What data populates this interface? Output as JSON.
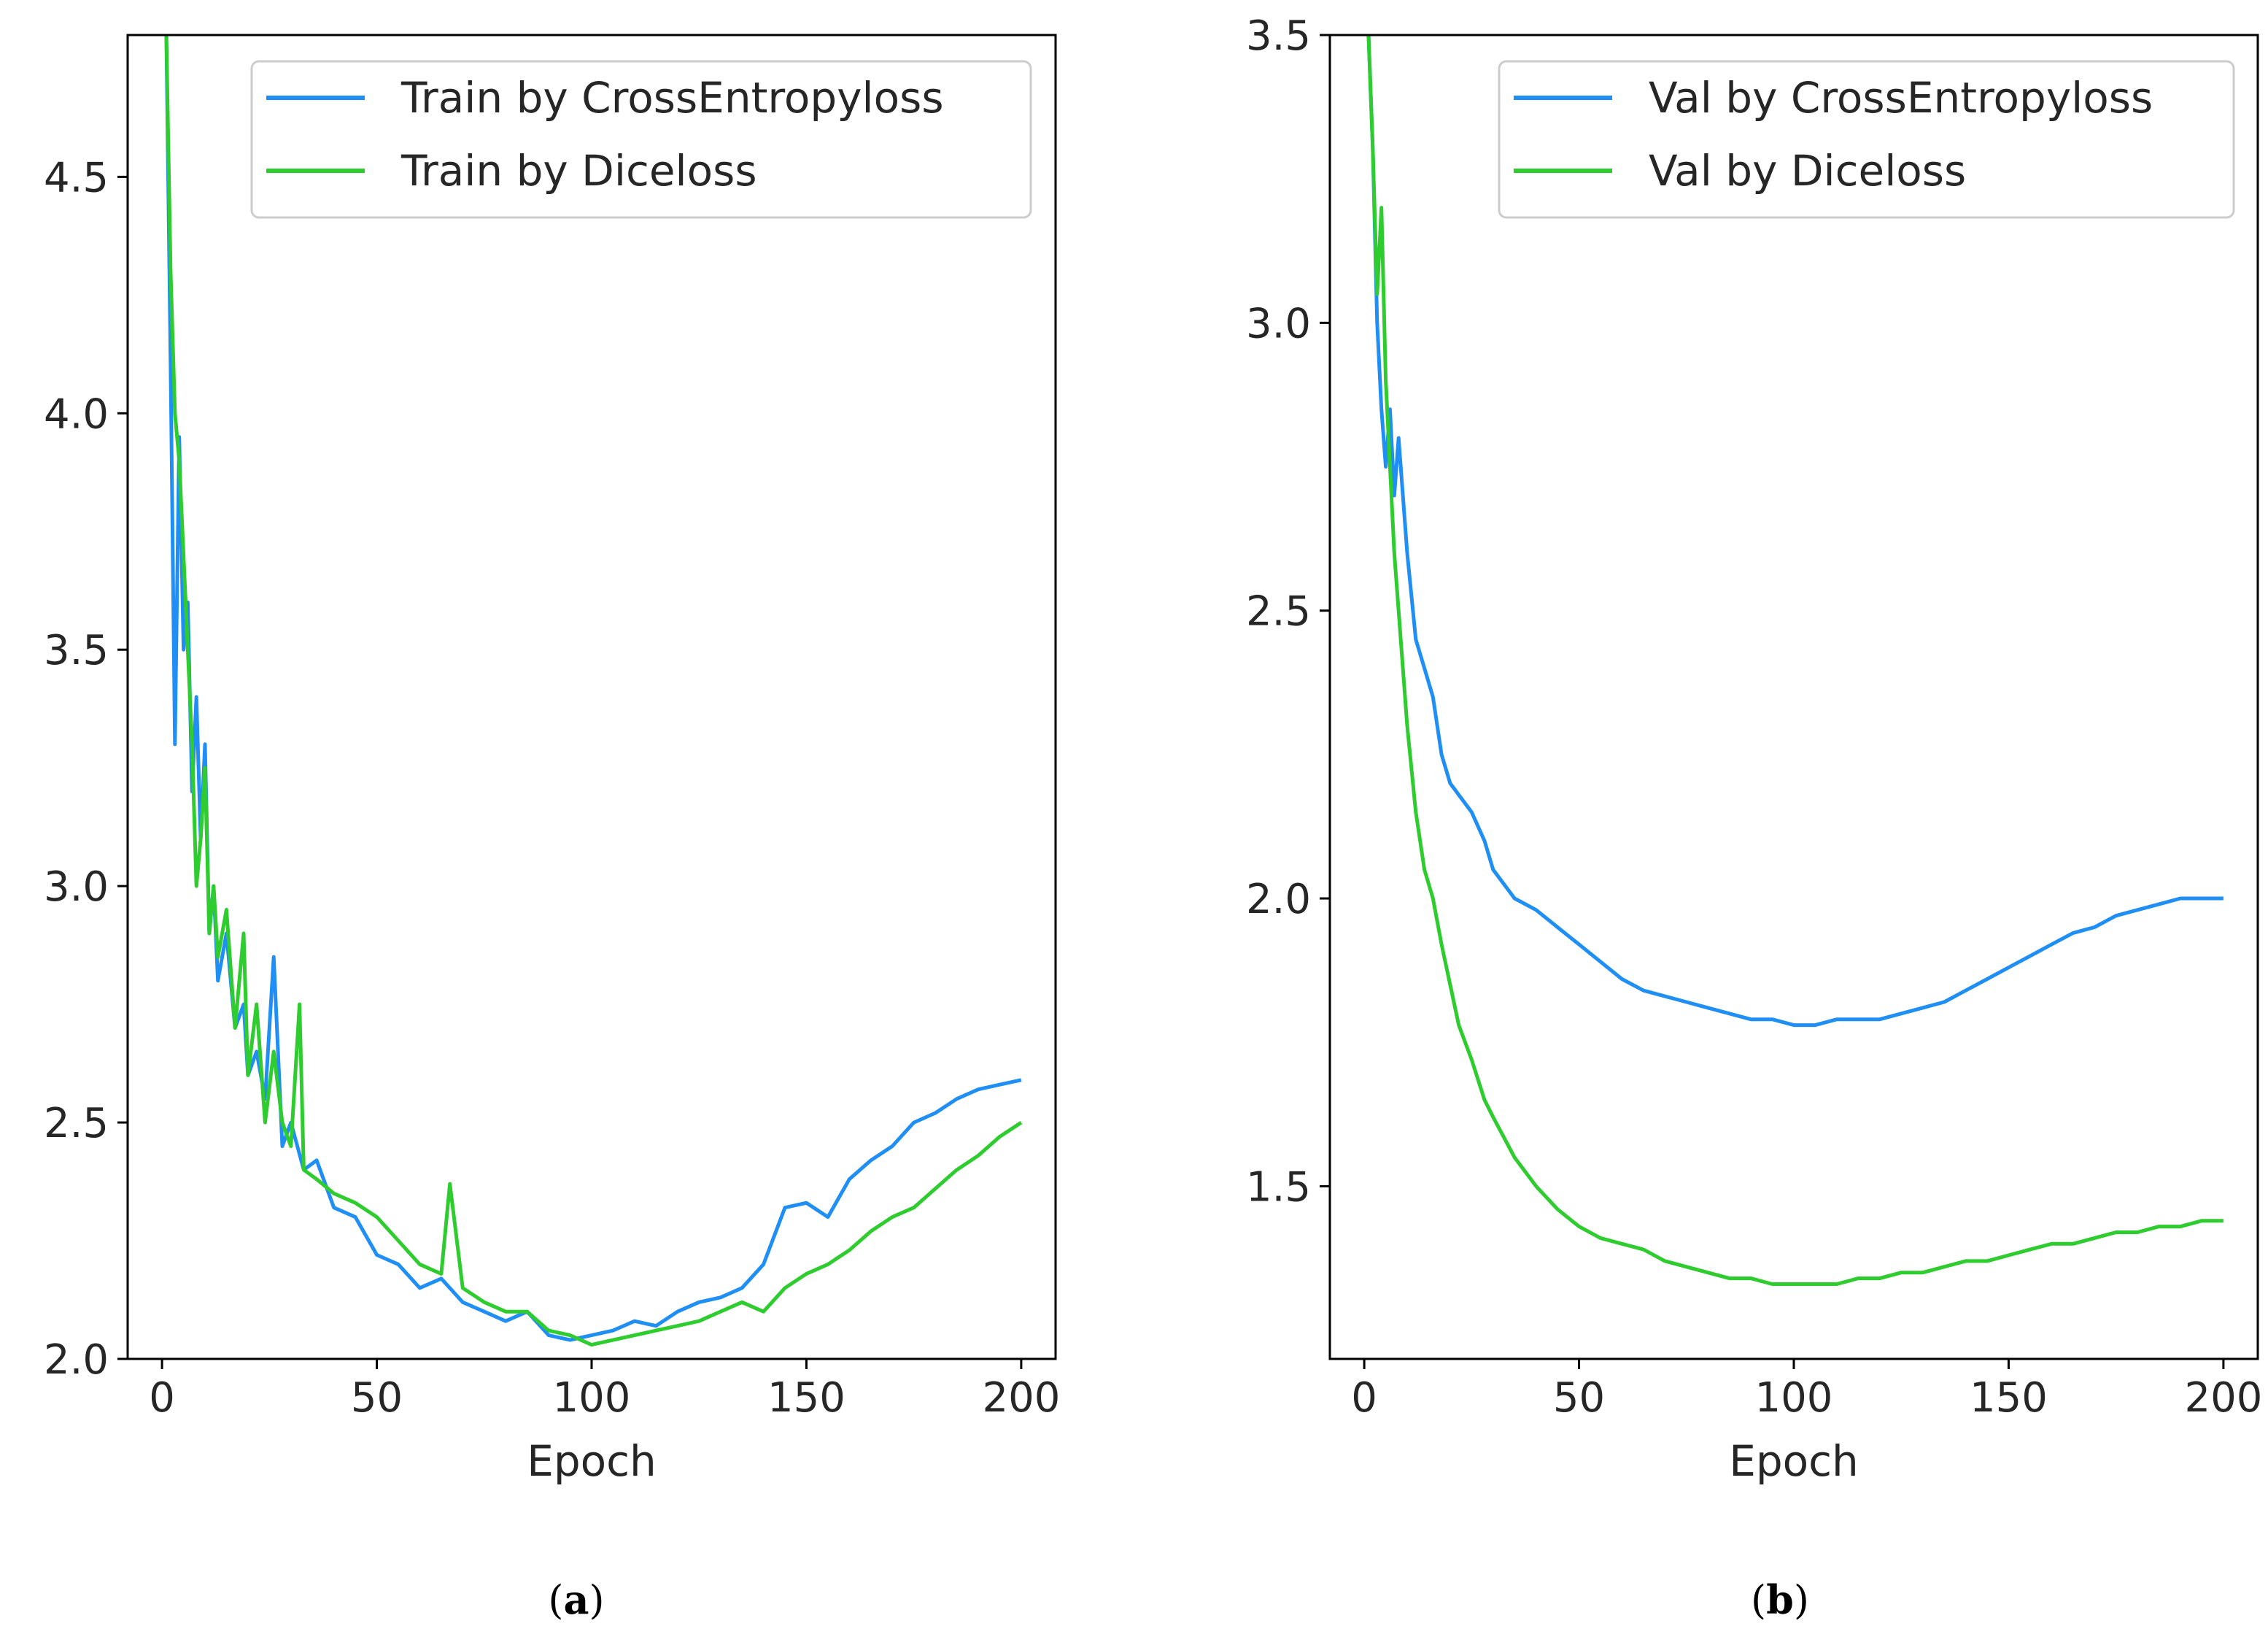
{
  "chart_data": [
    {
      "type": "line",
      "panel": "a",
      "caption_letter": "a",
      "xlabel": "Epoch",
      "ylabel": "",
      "xlim": [
        -8,
        208
      ],
      "ylim": [
        2.0,
        4.8
      ],
      "xticks": [
        0,
        50,
        100,
        150,
        200
      ],
      "yticks": [
        2.0,
        2.5,
        3.0,
        3.5,
        4.0,
        4.5
      ],
      "xtick_labels": [
        "0",
        "50",
        "100",
        "150",
        "200"
      ],
      "ytick_labels": [
        "2.0",
        "2.5",
        "3.0",
        "3.5",
        "4.0",
        "4.5"
      ],
      "legend_position": "top-right",
      "series": [
        {
          "name": "Train by CrossEntropyloss",
          "color": "#1f8ff5",
          "x": [
            1,
            2,
            3,
            4,
            5,
            6,
            7,
            8,
            9,
            10,
            11,
            12,
            13,
            15,
            17,
            19,
            20,
            22,
            24,
            26,
            28,
            30,
            33,
            36,
            40,
            45,
            50,
            55,
            60,
            65,
            70,
            75,
            80,
            85,
            90,
            95,
            100,
            105,
            110,
            115,
            120,
            125,
            130,
            135,
            140,
            145,
            150,
            155,
            160,
            165,
            170,
            175,
            180,
            185,
            190,
            195,
            200
          ],
          "y": [
            4.8,
            4.1,
            3.3,
            3.95,
            3.5,
            3.6,
            3.2,
            3.4,
            3.1,
            3.3,
            2.9,
            3.0,
            2.8,
            2.9,
            2.7,
            2.75,
            2.6,
            2.65,
            2.55,
            2.85,
            2.45,
            2.5,
            2.4,
            2.42,
            2.32,
            2.3,
            2.22,
            2.2,
            2.15,
            2.17,
            2.12,
            2.1,
            2.08,
            2.1,
            2.05,
            2.04,
            2.05,
            2.06,
            2.08,
            2.07,
            2.1,
            2.12,
            2.13,
            2.15,
            2.2,
            2.32,
            2.33,
            2.3,
            2.38,
            2.42,
            2.45,
            2.5,
            2.52,
            2.55,
            2.57,
            2.58,
            2.59
          ]
        },
        {
          "name": "Train by Diceloss",
          "color": "#2ecc2e",
          "x": [
            1,
            2,
            3,
            4,
            5,
            6,
            7,
            8,
            9,
            10,
            11,
            12,
            13,
            15,
            17,
            19,
            20,
            22,
            24,
            26,
            28,
            30,
            32,
            33,
            36,
            40,
            45,
            50,
            55,
            60,
            65,
            67,
            70,
            75,
            80,
            85,
            90,
            95,
            100,
            105,
            110,
            115,
            120,
            125,
            130,
            135,
            140,
            145,
            150,
            155,
            160,
            165,
            170,
            175,
            180,
            185,
            190,
            195,
            200
          ],
          "y": [
            4.8,
            4.3,
            4.0,
            3.9,
            3.7,
            3.5,
            3.3,
            3.0,
            3.1,
            3.25,
            2.9,
            3.0,
            2.85,
            2.95,
            2.7,
            2.9,
            2.6,
            2.75,
            2.5,
            2.65,
            2.5,
            2.45,
            2.75,
            2.4,
            2.38,
            2.35,
            2.33,
            2.3,
            2.25,
            2.2,
            2.18,
            2.37,
            2.15,
            2.12,
            2.1,
            2.1,
            2.06,
            2.05,
            2.03,
            2.04,
            2.05,
            2.06,
            2.07,
            2.08,
            2.1,
            2.12,
            2.1,
            2.15,
            2.18,
            2.2,
            2.23,
            2.27,
            2.3,
            2.32,
            2.36,
            2.4,
            2.43,
            2.47,
            2.5
          ]
        }
      ]
    },
    {
      "type": "line",
      "panel": "b",
      "caption_letter": "b",
      "xlabel": "Epoch",
      "ylabel": "",
      "xlim": [
        -8,
        208
      ],
      "ylim": [
        1.2,
        3.5
      ],
      "xticks": [
        0,
        50,
        100,
        150,
        200
      ],
      "yticks": [
        1.5,
        2.0,
        2.5,
        3.0,
        3.5
      ],
      "xtick_labels": [
        "0",
        "50",
        "100",
        "150",
        "200"
      ],
      "ytick_labels": [
        "1.5",
        "2.0",
        "2.5",
        "3.0",
        "3.5"
      ],
      "legend_position": "top-right",
      "series": [
        {
          "name": "Val by CrossEntropyloss",
          "color": "#1f8ff5",
          "x": [
            1,
            2,
            3,
            4,
            5,
            6,
            7,
            8,
            10,
            12,
            14,
            16,
            18,
            20,
            22,
            25,
            28,
            30,
            35,
            40,
            45,
            50,
            55,
            60,
            65,
            70,
            75,
            80,
            85,
            90,
            95,
            100,
            105,
            110,
            115,
            120,
            125,
            130,
            135,
            140,
            145,
            150,
            155,
            160,
            165,
            170,
            175,
            180,
            185,
            190,
            195,
            200
          ],
          "y": [
            3.5,
            3.3,
            3.0,
            2.85,
            2.75,
            2.85,
            2.7,
            2.8,
            2.6,
            2.45,
            2.4,
            2.35,
            2.25,
            2.2,
            2.18,
            2.15,
            2.1,
            2.05,
            2.0,
            1.98,
            1.95,
            1.92,
            1.89,
            1.86,
            1.84,
            1.83,
            1.82,
            1.81,
            1.8,
            1.79,
            1.79,
            1.78,
            1.78,
            1.79,
            1.79,
            1.79,
            1.8,
            1.81,
            1.82,
            1.84,
            1.86,
            1.88,
            1.9,
            1.92,
            1.94,
            1.95,
            1.97,
            1.98,
            1.99,
            2.0,
            2.0,
            2.0
          ]
        },
        {
          "name": "Val by Diceloss",
          "color": "#2ecc2e",
          "x": [
            1,
            2,
            3,
            4,
            5,
            6,
            7,
            8,
            10,
            12,
            14,
            16,
            18,
            20,
            22,
            25,
            28,
            30,
            35,
            40,
            45,
            50,
            55,
            60,
            65,
            70,
            75,
            80,
            85,
            90,
            95,
            100,
            105,
            110,
            115,
            120,
            125,
            130,
            135,
            140,
            145,
            150,
            155,
            160,
            165,
            170,
            175,
            180,
            185,
            190,
            195,
            200
          ],
          "y": [
            3.5,
            3.3,
            3.05,
            3.2,
            2.9,
            2.75,
            2.6,
            2.5,
            2.3,
            2.15,
            2.05,
            2.0,
            1.92,
            1.85,
            1.78,
            1.72,
            1.65,
            1.62,
            1.55,
            1.5,
            1.46,
            1.43,
            1.41,
            1.4,
            1.39,
            1.37,
            1.36,
            1.35,
            1.34,
            1.34,
            1.33,
            1.33,
            1.33,
            1.33,
            1.34,
            1.34,
            1.35,
            1.35,
            1.36,
            1.37,
            1.37,
            1.38,
            1.39,
            1.4,
            1.4,
            1.41,
            1.42,
            1.42,
            1.43,
            1.43,
            1.44,
            1.44
          ]
        }
      ]
    }
  ]
}
